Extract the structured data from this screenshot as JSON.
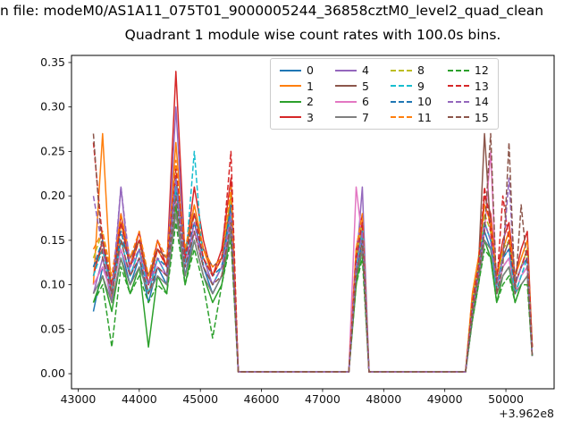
{
  "page": {
    "title_line": "n file: modeM0/AS1A11_075T01_9000005244_36858cztM0_level2_quad_clean",
    "subtitle": "Quadrant 1 module wise count rates with 100.0s bins."
  },
  "axes": {
    "xlim": [
      42891,
      50789
    ],
    "ylim": [
      -0.017,
      0.358
    ],
    "x_tick_values": [
      43000,
      44000,
      45000,
      46000,
      47000,
      48000,
      49000,
      50000
    ],
    "x_tick_labels": [
      "43000",
      "44000",
      "45000",
      "46000",
      "47000",
      "48000",
      "49000",
      "50000"
    ],
    "y_tick_values": [
      0.0,
      0.05,
      0.1,
      0.15,
      0.2,
      0.25,
      0.3,
      0.35
    ],
    "y_tick_labels": [
      "0.00",
      "0.05",
      "0.10",
      "0.15",
      "0.20",
      "0.25",
      "0.30",
      "0.35"
    ],
    "x_offset_label": "+3.962e8",
    "spine_color": "#000000",
    "background_color": "#ffffff"
  },
  "chart_data": {
    "type": "line",
    "title": "Quadrant 1 module wise count rates with 100.0s bins.",
    "xlabel": "",
    "ylabel": "",
    "x_offset": "+3.962e8",
    "ylim": [
      0,
      0.35
    ],
    "legend_position": "upper center",
    "legend_columns": 4,
    "x": [
      43250,
      43400,
      43550,
      43700,
      43850,
      44000,
      44150,
      44300,
      44450,
      44600,
      44750,
      44900,
      45050,
      45200,
      45350,
      45500,
      45620,
      47430,
      47550,
      47650,
      47760,
      49340,
      49450,
      49550,
      49650,
      49750,
      49850,
      49950,
      50050,
      50150,
      50250,
      50350,
      50430
    ],
    "series": [
      {
        "name": "0",
        "color": "#1f77b4",
        "dash": false,
        "values": [
          0.07,
          0.12,
          0.09,
          0.14,
          0.1,
          0.13,
          0.08,
          0.12,
          0.1,
          0.21,
          0.11,
          0.16,
          0.12,
          0.09,
          0.11,
          0.17,
          0.002,
          0.002,
          0.11,
          0.15,
          0.002,
          0.002,
          0.07,
          0.11,
          0.16,
          0.14,
          0.09,
          0.12,
          0.13,
          0.09,
          0.11,
          0.12,
          0.02
        ]
      },
      {
        "name": "1",
        "color": "#ff7f0e",
        "dash": false,
        "values": [
          0.1,
          0.27,
          0.08,
          0.17,
          0.12,
          0.15,
          0.1,
          0.14,
          0.12,
          0.26,
          0.13,
          0.19,
          0.14,
          0.11,
          0.13,
          0.2,
          0.002,
          0.002,
          0.13,
          0.17,
          0.002,
          0.002,
          0.09,
          0.13,
          0.19,
          0.17,
          0.11,
          0.14,
          0.16,
          0.11,
          0.13,
          0.15,
          0.03
        ]
      },
      {
        "name": "2",
        "color": "#2ca02c",
        "dash": false,
        "values": [
          0.08,
          0.11,
          0.07,
          0.13,
          0.09,
          0.12,
          0.03,
          0.11,
          0.09,
          0.19,
          0.1,
          0.15,
          0.11,
          0.08,
          0.1,
          0.16,
          0.002,
          0.002,
          0.1,
          0.14,
          0.002,
          0.002,
          0.06,
          0.1,
          0.15,
          0.13,
          0.08,
          0.11,
          0.12,
          0.08,
          0.1,
          0.11,
          0.02
        ]
      },
      {
        "name": "3",
        "color": "#d62728",
        "dash": false,
        "values": [
          0.11,
          0.15,
          0.09,
          0.18,
          0.12,
          0.16,
          0.1,
          0.15,
          0.12,
          0.34,
          0.13,
          0.21,
          0.15,
          0.11,
          0.14,
          0.22,
          0.002,
          0.002,
          0.14,
          0.18,
          0.002,
          0.002,
          0.08,
          0.12,
          0.2,
          0.18,
          0.11,
          0.15,
          0.17,
          0.11,
          0.14,
          0.16,
          0.03
        ]
      },
      {
        "name": "4",
        "color": "#9467bd",
        "dash": false,
        "values": [
          0.09,
          0.13,
          0.08,
          0.21,
          0.11,
          0.14,
          0.09,
          0.13,
          0.11,
          0.3,
          0.12,
          0.17,
          0.13,
          0.1,
          0.12,
          0.18,
          0.002,
          0.002,
          0.12,
          0.21,
          0.002,
          0.002,
          0.07,
          0.11,
          0.17,
          0.15,
          0.1,
          0.13,
          0.14,
          0.1,
          0.12,
          0.13,
          0.02
        ]
      },
      {
        "name": "5",
        "color": "#8c564b",
        "dash": false,
        "values": [
          0.12,
          0.14,
          0.1,
          0.15,
          0.13,
          0.15,
          0.11,
          0.14,
          0.13,
          0.22,
          0.14,
          0.18,
          0.14,
          0.12,
          0.13,
          0.19,
          0.002,
          0.002,
          0.13,
          0.16,
          0.002,
          0.002,
          0.08,
          0.12,
          0.27,
          0.16,
          0.1,
          0.13,
          0.15,
          0.1,
          0.12,
          0.14,
          0.03
        ]
      },
      {
        "name": "6",
        "color": "#e377c2",
        "dash": false,
        "values": [
          0.1,
          0.12,
          0.09,
          0.14,
          0.11,
          0.13,
          0.1,
          0.12,
          0.11,
          0.2,
          0.12,
          0.16,
          0.12,
          0.1,
          0.12,
          0.17,
          0.002,
          0.002,
          0.21,
          0.15,
          0.002,
          0.002,
          0.07,
          0.11,
          0.16,
          0.25,
          0.09,
          0.12,
          0.13,
          0.09,
          0.11,
          0.12,
          0.02
        ]
      },
      {
        "name": "7",
        "color": "#7f7f7f",
        "dash": false,
        "values": [
          0.09,
          0.11,
          0.08,
          0.13,
          0.1,
          0.12,
          0.09,
          0.11,
          0.1,
          0.18,
          0.11,
          0.15,
          0.11,
          0.09,
          0.11,
          0.16,
          0.002,
          0.002,
          0.11,
          0.14,
          0.002,
          0.002,
          0.06,
          0.1,
          0.15,
          0.14,
          0.09,
          0.11,
          0.12,
          0.09,
          0.1,
          0.11,
          0.02
        ]
      },
      {
        "name": "8",
        "color": "#bcbd22",
        "dash": true,
        "values": [
          0.13,
          0.16,
          0.1,
          0.17,
          0.12,
          0.15,
          0.1,
          0.14,
          0.12,
          0.23,
          0.13,
          0.18,
          0.13,
          0.11,
          0.13,
          0.2,
          0.002,
          0.002,
          0.13,
          0.17,
          0.002,
          0.002,
          0.08,
          0.12,
          0.18,
          0.16,
          0.1,
          0.14,
          0.15,
          0.1,
          0.12,
          0.14,
          0.03
        ]
      },
      {
        "name": "9",
        "color": "#17becf",
        "dash": true,
        "values": [
          0.11,
          0.14,
          0.09,
          0.15,
          0.11,
          0.14,
          0.09,
          0.13,
          0.11,
          0.21,
          0.12,
          0.25,
          0.12,
          0.1,
          0.12,
          0.18,
          0.002,
          0.002,
          0.12,
          0.16,
          0.002,
          0.002,
          0.07,
          0.11,
          0.17,
          0.15,
          0.09,
          0.13,
          0.14,
          0.09,
          0.11,
          0.13,
          0.02
        ]
      },
      {
        "name": "10",
        "color": "#1f77b4",
        "dash": true,
        "values": [
          0.12,
          0.15,
          0.1,
          0.16,
          0.12,
          0.14,
          0.1,
          0.13,
          0.12,
          0.22,
          0.13,
          0.17,
          0.13,
          0.11,
          0.12,
          0.19,
          0.002,
          0.002,
          0.12,
          0.16,
          0.002,
          0.002,
          0.08,
          0.12,
          0.17,
          0.15,
          0.1,
          0.13,
          0.14,
          0.1,
          0.12,
          0.13,
          0.03
        ]
      },
      {
        "name": "11",
        "color": "#ff7f0e",
        "dash": true,
        "values": [
          0.14,
          0.16,
          0.11,
          0.18,
          0.13,
          0.16,
          0.11,
          0.15,
          0.13,
          0.24,
          0.14,
          0.19,
          0.14,
          0.12,
          0.13,
          0.21,
          0.002,
          0.002,
          0.14,
          0.18,
          0.002,
          0.002,
          0.09,
          0.13,
          0.19,
          0.17,
          0.11,
          0.14,
          0.16,
          0.11,
          0.13,
          0.15,
          0.03
        ]
      },
      {
        "name": "12",
        "color": "#2ca02c",
        "dash": true,
        "values": [
          0.08,
          0.1,
          0.03,
          0.12,
          0.09,
          0.11,
          0.08,
          0.1,
          0.09,
          0.17,
          0.1,
          0.14,
          0.1,
          0.04,
          0.1,
          0.15,
          0.002,
          0.002,
          0.1,
          0.13,
          0.002,
          0.002,
          0.06,
          0.1,
          0.14,
          0.13,
          0.08,
          0.1,
          0.11,
          0.08,
          0.1,
          0.1,
          0.02
        ]
      },
      {
        "name": "13",
        "color": "#d62728",
        "dash": true,
        "values": [
          0.26,
          0.15,
          0.1,
          0.17,
          0.12,
          0.15,
          0.1,
          0.14,
          0.12,
          0.23,
          0.13,
          0.18,
          0.13,
          0.11,
          0.13,
          0.25,
          0.002,
          0.002,
          0.13,
          0.17,
          0.002,
          0.002,
          0.08,
          0.12,
          0.21,
          0.16,
          0.1,
          0.2,
          0.15,
          0.1,
          0.12,
          0.14,
          0.03
        ]
      },
      {
        "name": "14",
        "color": "#9467bd",
        "dash": true,
        "values": [
          0.2,
          0.14,
          0.09,
          0.21,
          0.12,
          0.14,
          0.1,
          0.13,
          0.11,
          0.22,
          0.12,
          0.17,
          0.12,
          0.1,
          0.12,
          0.18,
          0.002,
          0.002,
          0.12,
          0.16,
          0.002,
          0.002,
          0.07,
          0.11,
          0.17,
          0.15,
          0.1,
          0.13,
          0.22,
          0.1,
          0.12,
          0.13,
          0.02
        ]
      },
      {
        "name": "15",
        "color": "#8c564b",
        "dash": true,
        "values": [
          0.27,
          0.13,
          0.09,
          0.15,
          0.11,
          0.13,
          0.09,
          0.12,
          0.11,
          0.2,
          0.12,
          0.16,
          0.12,
          0.1,
          0.11,
          0.17,
          0.002,
          0.002,
          0.11,
          0.15,
          0.002,
          0.002,
          0.07,
          0.11,
          0.16,
          0.27,
          0.09,
          0.12,
          0.26,
          0.09,
          0.19,
          0.12,
          0.02
        ]
      }
    ]
  }
}
